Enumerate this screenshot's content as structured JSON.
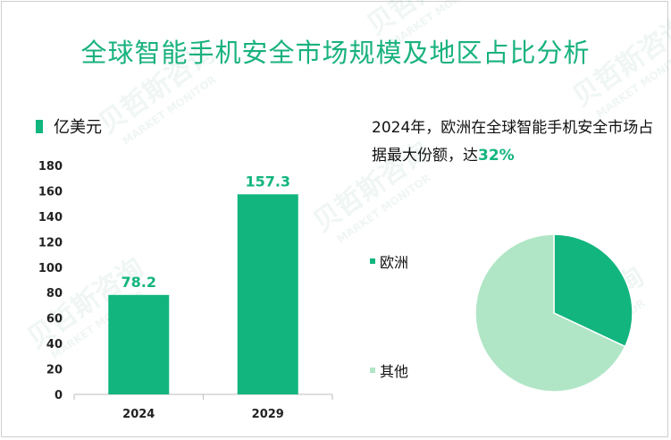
{
  "title": "全球智能手机安全市场规模及地区占比分析",
  "watermark": {
    "cn": "贝哲斯咨询",
    "en": "MARKET MONITOR"
  },
  "chart_data": [
    {
      "type": "bar",
      "unit_label": "亿美元",
      "categories": [
        "2024",
        "2029"
      ],
      "values": [
        78.2,
        157.3
      ],
      "data_labels": [
        "78.2",
        "157.3"
      ],
      "ylim": [
        0,
        180
      ],
      "yticks": [
        0,
        20,
        40,
        60,
        80,
        100,
        120,
        140,
        160,
        180
      ],
      "grid": false,
      "bar_color": "#12b57e",
      "label_color": "#12b57e"
    },
    {
      "type": "pie",
      "annotation": {
        "text": "2024年，欧洲在全球智能手机安全市场占据最大份额，达",
        "highlight": "32%"
      },
      "slices": [
        {
          "name": "欧洲",
          "value": 32,
          "color": "#12b57e"
        },
        {
          "name": "其他",
          "value": 68,
          "color": "#b0e6c6"
        }
      ]
    }
  ],
  "colors": {
    "title": "#19b27d",
    "accent": "#12b57e",
    "light": "#b0e6c6"
  }
}
